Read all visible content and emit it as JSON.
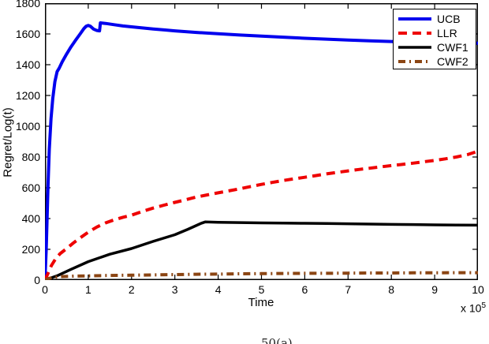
{
  "figure": {
    "caption_fragment": "50(a)"
  },
  "chart_data": {
    "type": "line",
    "title": "",
    "xlabel": "Time",
    "ylabel": "Regret/Log(t)",
    "x_exponent_label": "x 10",
    "x_exponent": "5",
    "xlim": [
      0,
      10
    ],
    "ylim": [
      0,
      1800
    ],
    "xticks": [
      0,
      1,
      2,
      3,
      4,
      5,
      6,
      7,
      8,
      9,
      10
    ],
    "yticks": [
      0,
      200,
      400,
      600,
      800,
      1000,
      1200,
      1400,
      1600,
      1800
    ],
    "grid": false,
    "legend_position": "top-right",
    "axis_color": "#000000",
    "background_color": "#ffffff",
    "series": [
      {
        "name": "UCB",
        "color": "#0000EE",
        "style": "solid",
        "width": 4,
        "points": [
          [
            0,
            0
          ],
          [
            0.03,
            200
          ],
          [
            0.07,
            600
          ],
          [
            0.1,
            850
          ],
          [
            0.14,
            1050
          ],
          [
            0.18,
            1180
          ],
          [
            0.23,
            1290
          ],
          [
            0.28,
            1355
          ],
          [
            0.33,
            1378
          ],
          [
            0.4,
            1420
          ],
          [
            0.5,
            1470
          ],
          [
            0.6,
            1515
          ],
          [
            0.7,
            1556
          ],
          [
            0.8,
            1595
          ],
          [
            0.9,
            1635
          ],
          [
            0.95,
            1650
          ],
          [
            1.0,
            1655
          ],
          [
            1.05,
            1650
          ],
          [
            1.12,
            1632
          ],
          [
            1.2,
            1622
          ],
          [
            1.26,
            1620
          ],
          [
            1.28,
            1672
          ],
          [
            1.4,
            1668
          ],
          [
            1.6,
            1660
          ],
          [
            1.8,
            1652
          ],
          [
            2,
            1646
          ],
          [
            2.25,
            1639
          ],
          [
            2.5,
            1632
          ],
          [
            2.75,
            1626
          ],
          [
            3,
            1620
          ],
          [
            3.5,
            1610
          ],
          [
            4,
            1601
          ],
          [
            4.5,
            1593
          ],
          [
            5,
            1586
          ],
          [
            5.5,
            1579
          ],
          [
            6,
            1572
          ],
          [
            6.5,
            1566
          ],
          [
            7,
            1560
          ],
          [
            7.5,
            1555
          ],
          [
            8,
            1551
          ],
          [
            8.5,
            1547
          ],
          [
            9,
            1544
          ],
          [
            9.5,
            1542
          ],
          [
            10,
            1540
          ]
        ]
      },
      {
        "name": "LLR",
        "color": "#EE0000",
        "style": "dashed",
        "width": 4,
        "points": [
          [
            0,
            0
          ],
          [
            0.08,
            50
          ],
          [
            0.15,
            95
          ],
          [
            0.25,
            140
          ],
          [
            0.35,
            172
          ],
          [
            0.5,
            205
          ],
          [
            0.65,
            240
          ],
          [
            0.8,
            272
          ],
          [
            1,
            312
          ],
          [
            1.2,
            345
          ],
          [
            1.4,
            372
          ],
          [
            1.6,
            392
          ],
          [
            1.8,
            408
          ],
          [
            2,
            422
          ],
          [
            2.25,
            446
          ],
          [
            2.5,
            468
          ],
          [
            2.75,
            487
          ],
          [
            3,
            505
          ],
          [
            3.25,
            522
          ],
          [
            3.5,
            540
          ],
          [
            3.75,
            554
          ],
          [
            4,
            567
          ],
          [
            4.25,
            580
          ],
          [
            4.5,
            594
          ],
          [
            4.75,
            608
          ],
          [
            5,
            622
          ],
          [
            5.25,
            635
          ],
          [
            5.5,
            647
          ],
          [
            5.75,
            658
          ],
          [
            6,
            668
          ],
          [
            6.25,
            679
          ],
          [
            6.5,
            690
          ],
          [
            6.75,
            700
          ],
          [
            7,
            710
          ],
          [
            7.25,
            719
          ],
          [
            7.5,
            727
          ],
          [
            7.75,
            736
          ],
          [
            8,
            744
          ],
          [
            8.25,
            752
          ],
          [
            8.5,
            760
          ],
          [
            8.75,
            769
          ],
          [
            9,
            778
          ],
          [
            9.25,
            788
          ],
          [
            9.5,
            800
          ],
          [
            9.75,
            815
          ],
          [
            10,
            838
          ]
        ]
      },
      {
        "name": "CWF1",
        "color": "#000000",
        "style": "solid",
        "width": 3.5,
        "points": [
          [
            0,
            0
          ],
          [
            0.3,
            30
          ],
          [
            0.6,
            70
          ],
          [
            1,
            120
          ],
          [
            1.5,
            168
          ],
          [
            2,
            205
          ],
          [
            2.5,
            252
          ],
          [
            3,
            295
          ],
          [
            3.3,
            330
          ],
          [
            3.6,
            368
          ],
          [
            3.7,
            378
          ],
          [
            4,
            376
          ],
          [
            4.5,
            374
          ],
          [
            5,
            372
          ],
          [
            5.5,
            371
          ],
          [
            6,
            369
          ],
          [
            6.5,
            368
          ],
          [
            7,
            366
          ],
          [
            7.5,
            364
          ],
          [
            8,
            362
          ],
          [
            8.5,
            361
          ],
          [
            9,
            359
          ],
          [
            9.5,
            358
          ],
          [
            10,
            357
          ]
        ]
      },
      {
        "name": "CWF2",
        "color": "#8B4513",
        "style": "dashdot",
        "width": 4,
        "points": [
          [
            0,
            0
          ],
          [
            0.08,
            10
          ],
          [
            0.2,
            18
          ],
          [
            0.4,
            23
          ],
          [
            0.7,
            26
          ],
          [
            1,
            27
          ],
          [
            1.5,
            30
          ],
          [
            2,
            32
          ],
          [
            2.5,
            34
          ],
          [
            3,
            36
          ],
          [
            3.5,
            38
          ],
          [
            4,
            39
          ],
          [
            4.5,
            41
          ],
          [
            5,
            42
          ],
          [
            5.5,
            43
          ],
          [
            6,
            44
          ],
          [
            6.5,
            44
          ],
          [
            7,
            45
          ],
          [
            7.5,
            46
          ],
          [
            8,
            46
          ],
          [
            8.5,
            47
          ],
          [
            9,
            47
          ],
          [
            9.5,
            48
          ],
          [
            10,
            48
          ]
        ]
      }
    ]
  }
}
